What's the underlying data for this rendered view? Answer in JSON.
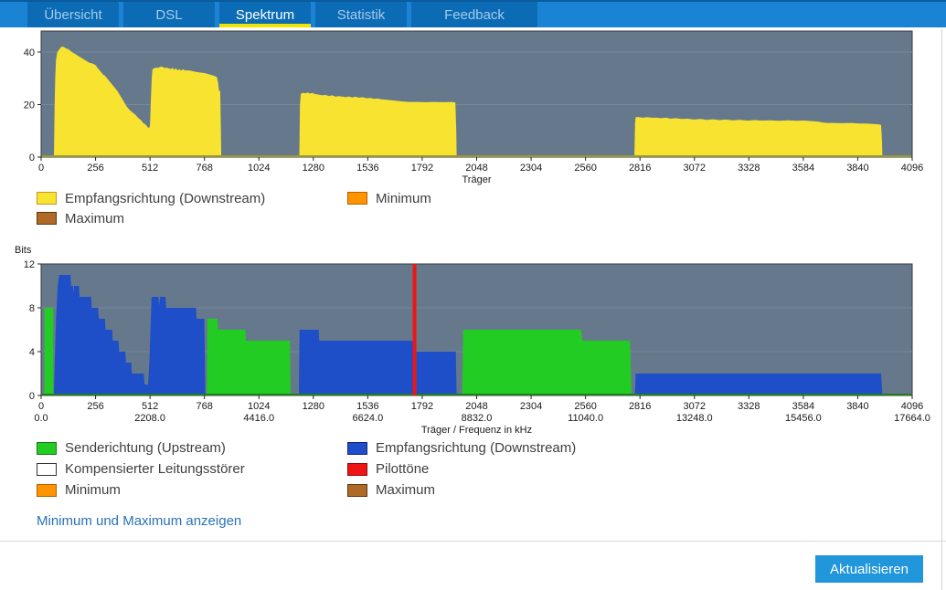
{
  "tabs": {
    "items": [
      {
        "label": "Übersicht",
        "active": false
      },
      {
        "label": "DSL",
        "active": false
      },
      {
        "label": "Spektrum",
        "active": true
      },
      {
        "label": "Statistik",
        "active": false
      },
      {
        "label": "Feedback",
        "active": false
      }
    ],
    "underline_color": "#f0e400",
    "bar_bg": "#1b83d4",
    "tab_bg": "#0b6bb5"
  },
  "chart_data": [
    {
      "type": "area",
      "title": "",
      "xlabel": "Träger",
      "ylabel": "",
      "xlim": [
        0,
        4096
      ],
      "ylim": [
        0,
        48
      ],
      "xticks": [
        0,
        256,
        512,
        768,
        1024,
        1280,
        1536,
        1792,
        2048,
        2304,
        2560,
        2816,
        3072,
        3328,
        3584,
        3840,
        4096
      ],
      "yticks": [
        0,
        20,
        40
      ],
      "grid": "on",
      "bg": "#66798c",
      "grid_color": "#77889b",
      "baseline_color": "#9a9a30",
      "series": [
        {
          "name": "Empfangsrichtung (Downstream)",
          "color": "#f8e430",
          "points": [
            [
              60,
              0
            ],
            [
              63,
              18
            ],
            [
              66,
              30
            ],
            [
              70,
              37
            ],
            [
              76,
              40
            ],
            [
              85,
              41
            ],
            [
              95,
              42
            ],
            [
              105,
              42
            ],
            [
              115,
              41.5
            ],
            [
              130,
              41
            ],
            [
              145,
              40
            ],
            [
              165,
              39
            ],
            [
              185,
              38
            ],
            [
              205,
              37
            ],
            [
              225,
              36
            ],
            [
              245,
              35.5
            ],
            [
              256,
              35
            ],
            [
              265,
              34
            ],
            [
              275,
              33
            ],
            [
              290,
              31.5
            ],
            [
              300,
              31
            ],
            [
              315,
              29.5
            ],
            [
              330,
              28
            ],
            [
              345,
              26.5
            ],
            [
              360,
              25
            ],
            [
              375,
              23
            ],
            [
              390,
              21
            ],
            [
              400,
              19.5
            ],
            [
              415,
              18
            ],
            [
              430,
              17
            ],
            [
              445,
              16
            ],
            [
              455,
              15
            ],
            [
              470,
              14
            ],
            [
              480,
              13
            ],
            [
              490,
              12.5
            ],
            [
              500,
              11.5
            ],
            [
              508,
              11
            ],
            [
              512,
              12
            ],
            [
              516,
              22
            ],
            [
              520,
              30
            ],
            [
              524,
              33.5
            ],
            [
              535,
              34
            ],
            [
              550,
              34
            ],
            [
              565,
              34.5
            ],
            [
              580,
              34
            ],
            [
              595,
              34
            ],
            [
              610,
              33.5
            ],
            [
              618,
              34
            ],
            [
              626,
              33.2
            ],
            [
              634,
              33.8
            ],
            [
              642,
              33
            ],
            [
              650,
              33.5
            ],
            [
              658,
              33
            ],
            [
              668,
              33.4
            ],
            [
              678,
              33
            ],
            [
              695,
              33
            ],
            [
              710,
              32.8
            ],
            [
              725,
              32.5
            ],
            [
              745,
              32.2
            ],
            [
              768,
              32
            ],
            [
              790,
              31.5
            ],
            [
              812,
              31
            ],
            [
              826,
              30.5
            ],
            [
              832,
              28.5
            ],
            [
              836,
              25.5
            ],
            [
              842,
              25
            ],
            [
              845,
              12
            ],
            [
              847,
              0
            ],
            [
              1214,
              0
            ],
            [
              1217,
              20
            ],
            [
              1221,
              24
            ],
            [
              1230,
              24.5
            ],
            [
              1244,
              24.3
            ],
            [
              1252,
              24.6
            ],
            [
              1262,
              24.2
            ],
            [
              1275,
              24.4
            ],
            [
              1288,
              24
            ],
            [
              1305,
              23.8
            ],
            [
              1322,
              23.5
            ],
            [
              1338,
              23.7
            ],
            [
              1352,
              23.2
            ],
            [
              1368,
              23.5
            ],
            [
              1385,
              23
            ],
            [
              1400,
              23.2
            ],
            [
              1418,
              23
            ],
            [
              1432,
              22.8
            ],
            [
              1448,
              23.1
            ],
            [
              1462,
              22.7
            ],
            [
              1478,
              23
            ],
            [
              1495,
              22.6
            ],
            [
              1512,
              22.8
            ],
            [
              1530,
              22.4
            ],
            [
              1548,
              22.5
            ],
            [
              1565,
              22.2
            ],
            [
              1582,
              22.3
            ],
            [
              1600,
              22
            ],
            [
              1625,
              21.8
            ],
            [
              1650,
              21.6
            ],
            [
              1675,
              21.4
            ],
            [
              1700,
              21.2
            ],
            [
              1730,
              21
            ],
            [
              1770,
              21
            ],
            [
              1810,
              20.9
            ],
            [
              1850,
              21
            ],
            [
              1890,
              20.9
            ],
            [
              1930,
              21
            ],
            [
              1948,
              20.8
            ],
            [
              1952,
              10
            ],
            [
              1954,
              0
            ],
            [
              2790,
              0
            ],
            [
              2793,
              13
            ],
            [
              2796,
              15.2
            ],
            [
              2810,
              15.2
            ],
            [
              2830,
              15
            ],
            [
              2850,
              15.2
            ],
            [
              2870,
              15
            ],
            [
              2895,
              15
            ],
            [
              2915,
              14.8
            ],
            [
              2940,
              15
            ],
            [
              2960,
              14.6
            ],
            [
              2985,
              14.8
            ],
            [
              3010,
              14.5
            ],
            [
              3040,
              14.6
            ],
            [
              3070,
              14.3
            ],
            [
              3100,
              14.5
            ],
            [
              3130,
              14.2
            ],
            [
              3160,
              14.4
            ],
            [
              3190,
              14.1
            ],
            [
              3220,
              14.3
            ],
            [
              3250,
              14
            ],
            [
              3285,
              14.2
            ],
            [
              3320,
              13.9
            ],
            [
              3355,
              14.1
            ],
            [
              3390,
              13.9
            ],
            [
              3430,
              14
            ],
            [
              3470,
              13.8
            ],
            [
              3510,
              14
            ],
            [
              3550,
              13.8
            ],
            [
              3590,
              13.9
            ],
            [
              3625,
              13.7
            ],
            [
              3655,
              13.5
            ],
            [
              3675,
              13.2
            ],
            [
              3695,
              13
            ],
            [
              3730,
              13
            ],
            [
              3770,
              12.9
            ],
            [
              3810,
              13
            ],
            [
              3845,
              12.8
            ],
            [
              3880,
              12.8
            ],
            [
              3915,
              12.6
            ],
            [
              3940,
              12.4
            ],
            [
              3950,
              12.2
            ],
            [
              3954,
              6
            ],
            [
              3956,
              0
            ]
          ]
        }
      ]
    },
    {
      "type": "area",
      "title": "",
      "xlabel": "Träger / Frequenz in kHz",
      "ylabel": "Bits",
      "xlim": [
        0,
        4096
      ],
      "ylim": [
        0,
        12
      ],
      "xticks": [
        0,
        256,
        512,
        768,
        1024,
        1280,
        1536,
        1792,
        2048,
        2304,
        2560,
        2816,
        3072,
        3328,
        3584,
        3840,
        4096
      ],
      "xticks2": {
        "positions": [
          0,
          512,
          1024,
          1536,
          2048,
          2560,
          3072,
          3584,
          4096
        ],
        "labels": [
          "0.0",
          "2208.0",
          "4416.0",
          "6624.0",
          "8832.0",
          "11040.0",
          "13248.0",
          "15456.0",
          "17664.0"
        ]
      },
      "yticks": [
        0,
        4,
        8,
        12
      ],
      "grid": "on",
      "bg": "#66798c",
      "grid_color": "#77889b",
      "baseline_color": "#1e7e1e",
      "series": [
        {
          "name": "Empfangsrichtung (Downstream)",
          "color": "#1f4ec9",
          "points": [
            [
              60,
              0
            ],
            [
              64,
              3
            ],
            [
              70,
              7
            ],
            [
              78,
              10
            ],
            [
              85,
              11
            ],
            [
              138,
              11
            ],
            [
              141,
              10
            ],
            [
              150,
              10
            ],
            [
              152,
              9.3
            ],
            [
              155,
              10
            ],
            [
              178,
              10
            ],
            [
              181,
              9
            ],
            [
              235,
              9
            ],
            [
              238,
              8
            ],
            [
              268,
              8
            ],
            [
              271,
              7
            ],
            [
              300,
              7
            ],
            [
              303,
              6
            ],
            [
              334,
              6
            ],
            [
              337,
              5
            ],
            [
              364,
              5
            ],
            [
              367,
              4
            ],
            [
              396,
              4
            ],
            [
              399,
              3
            ],
            [
              424,
              3
            ],
            [
              427,
              2
            ],
            [
              483,
              2
            ],
            [
              486,
              1
            ],
            [
              503,
              1
            ],
            [
              509,
              3
            ],
            [
              514,
              6
            ],
            [
              519,
              9
            ],
            [
              552,
              9
            ],
            [
              555,
              8.2
            ],
            [
              559,
              9
            ],
            [
              585,
              9
            ],
            [
              588,
              8
            ],
            [
              728,
              8
            ],
            [
              731,
              7
            ],
            [
              767,
              7
            ],
            [
              770,
              3
            ],
            [
              772,
              0
            ],
            [
              1212,
              0
            ],
            [
              1215,
              6
            ],
            [
              1305,
              6
            ],
            [
              1308,
              5
            ],
            [
              1748,
              5
            ],
            [
              1752,
              4
            ],
            [
              1950,
              4
            ],
            [
              1954,
              0
            ],
            [
              2792,
              0
            ],
            [
              2796,
              2
            ],
            [
              3950,
              2
            ],
            [
              3956,
              0
            ]
          ]
        },
        {
          "name": "Senderichtung (Upstream)",
          "color": "#22cc22",
          "points": [
            [
              15,
              0
            ],
            [
              15,
              8
            ],
            [
              57,
              8
            ],
            [
              57,
              0
            ],
            [
              779,
              0
            ],
            [
              782,
              7
            ],
            [
              829,
              7
            ],
            [
              832,
              6
            ],
            [
              960,
              6
            ],
            [
              963,
              5
            ],
            [
              1170,
              5
            ],
            [
              1174,
              0
            ],
            [
              1980,
              0
            ],
            [
              1985,
              6
            ],
            [
              2538,
              6
            ],
            [
              2545,
              5
            ],
            [
              2769,
              5
            ],
            [
              2776,
              0
            ],
            [
              4096,
              0
            ]
          ]
        }
      ],
      "markers": [
        {
          "name": "Pilottöne",
          "color": "#ee1515",
          "x": 1756
        }
      ]
    }
  ],
  "legend1": {
    "items": [
      {
        "label": "Empfangsrichtung (Downstream)",
        "color": "#f8e430",
        "border": "#c8961e"
      },
      {
        "label": "Minimum",
        "color": "#ff9300",
        "border": "#b36200"
      },
      {
        "label": "Maximum",
        "color": "#b06a28",
        "border": "#5f3610"
      }
    ]
  },
  "legend2": {
    "items": [
      {
        "label": "Senderichtung (Upstream)",
        "color": "#22cc22",
        "border": "#1a7a1a"
      },
      {
        "label": "Empfangsrichtung (Downstream)",
        "color": "#1f4ec9",
        "border": "#12297a"
      },
      {
        "label": "Kompensierter Leitungsstörer",
        "color": "#ffffff",
        "border": "#333333"
      },
      {
        "label": "Pilottöne",
        "color": "#ee1515",
        "border": "#8f0d0d"
      },
      {
        "label": "Minimum",
        "color": "#ff9300",
        "border": "#b36200"
      },
      {
        "label": "Maximum",
        "color": "#b06a28",
        "border": "#5f3610"
      }
    ]
  },
  "link": {
    "label": "Minimum und Maximum anzeigen"
  },
  "button": {
    "label": "Aktualisieren"
  }
}
